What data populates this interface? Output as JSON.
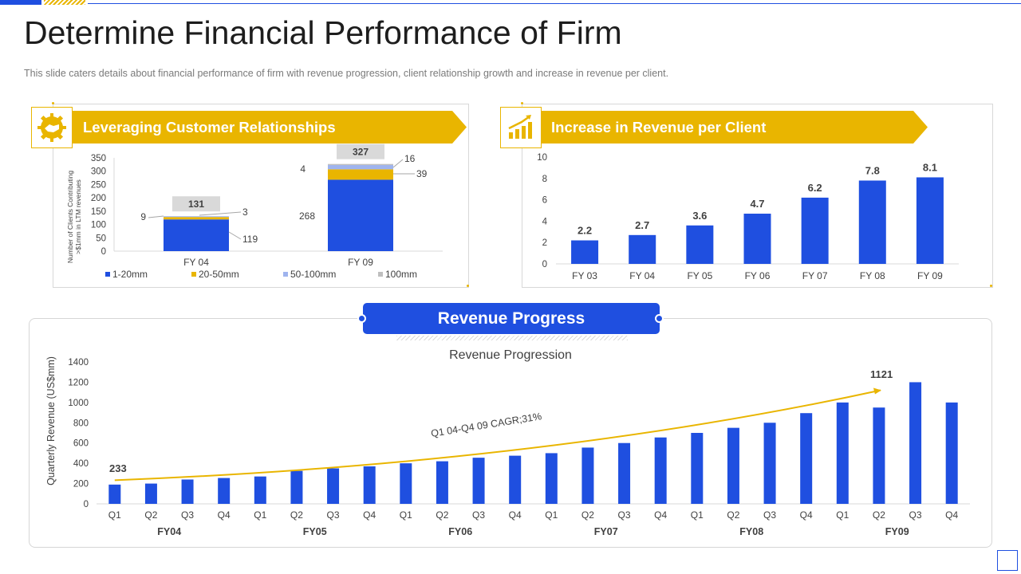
{
  "title": "Determine Financial Performance of Firm",
  "subtitle": "This slide caters details about financial performance  of firm with revenue  progression,  client relationship growth  and increase in revenue  per client.",
  "left_panel": {
    "heading": "Leveraging Customer Relationships",
    "icon": "handshake-gear-icon"
  },
  "right_panel": {
    "heading": "Increase in Revenue per Client",
    "icon": "growth-bar-chart-icon"
  },
  "revenue_section": {
    "heading": "Revenue Progress"
  },
  "colors": {
    "blue": "#1f4fe0",
    "gold": "#e9b500",
    "light_blue": "#9fb4ee",
    "gray": "#bfbfbf",
    "grid": "#d9d9d9"
  },
  "chart_data": [
    {
      "type": "bar",
      "stacked": true,
      "ylabel_lines": [
        "Number of Clients Contributing",
        ">$1mm in LTM revenues"
      ],
      "ylim": [
        0,
        350
      ],
      "yticks": [
        0,
        50,
        100,
        150,
        200,
        250,
        300,
        350
      ],
      "categories": [
        "FY 04",
        "FY 09"
      ],
      "series": [
        {
          "name": "1-20mm",
          "values": [
            119,
            268
          ]
        },
        {
          "name": "20-50mm",
          "values": [
            9,
            39
          ]
        },
        {
          "name": "50-100mm",
          "values": [
            3,
            16
          ]
        },
        {
          "name": "100mm",
          "values": [
            0,
            4
          ]
        }
      ],
      "totals": [
        131,
        327
      ],
      "legend": "bottom",
      "grid": false
    },
    {
      "type": "bar",
      "categories": [
        "FY 03",
        "FY 04",
        "FY 05",
        "FY 06",
        "FY 07",
        "FY 08",
        "FY 09"
      ],
      "values": [
        2.2,
        2.7,
        3.6,
        4.7,
        6.2,
        7.8,
        8.1
      ],
      "ylim": [
        0,
        10
      ],
      "yticks": [
        0,
        2,
        4,
        6,
        8,
        10
      ],
      "grid": false
    },
    {
      "type": "bar",
      "title": "Revenue Progression",
      "ylabel": "Quarterly  Revenue  (US$mm)",
      "ylim": [
        0,
        1400
      ],
      "yticks": [
        0,
        200,
        400,
        600,
        800,
        1000,
        1200,
        1400
      ],
      "quarters": [
        "Q1",
        "Q2",
        "Q3",
        "Q4",
        "Q1",
        "Q2",
        "Q3",
        "Q4",
        "Q1",
        "Q2",
        "Q3",
        "Q4",
        "Q1",
        "Q2",
        "Q3",
        "Q4",
        "Q1",
        "Q2",
        "Q3",
        "Q4",
        "Q1",
        "Q2",
        "Q3",
        "Q4"
      ],
      "years": [
        "FY04",
        "FY05",
        "FY06",
        "FY07",
        "FY08",
        "FY09"
      ],
      "values": [
        190,
        200,
        240,
        255,
        270,
        325,
        350,
        370,
        400,
        420,
        455,
        475,
        500,
        555,
        600,
        655,
        700,
        750,
        800,
        895,
        1000,
        950,
        1200,
        1000
      ],
      "trendline": {
        "label": "Q1 04-Q4  09 CAGR;31%",
        "start_label": "233",
        "end_label": "1121",
        "start_value": 233,
        "end_value": 1121
      },
      "grid": false
    }
  ]
}
